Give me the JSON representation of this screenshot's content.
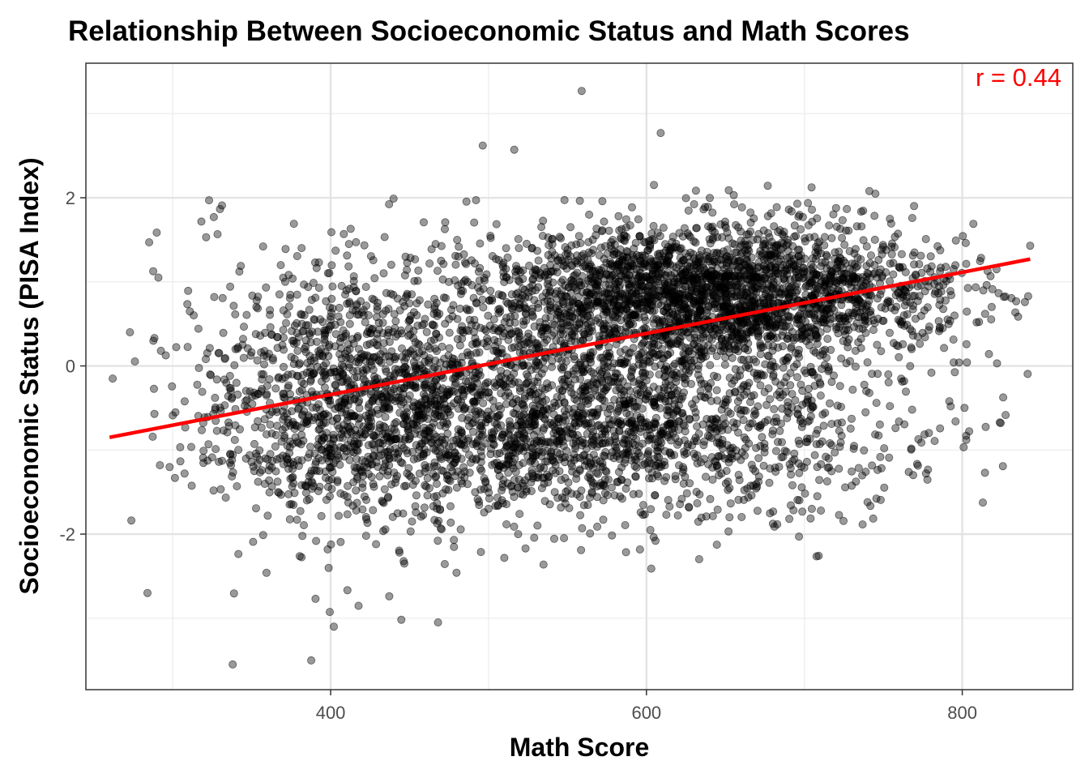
{
  "chart_data": {
    "type": "scatter",
    "title": "Relationship Between Socioeconomic Status and Math Scores",
    "xlabel": "Math Score",
    "ylabel": "Socioeconomic Status (PISA Index)",
    "xlim": [
      245,
      870
    ],
    "ylim": [
      -3.85,
      3.6
    ],
    "x_ticks": [
      400,
      600,
      800
    ],
    "x_tick_labels": [
      "400",
      "600",
      "800"
    ],
    "y_ticks": [
      -2,
      0,
      2
    ],
    "y_tick_labels": [
      "-2",
      "0",
      "2"
    ],
    "grid": true,
    "point_color": "#000000",
    "point_opacity": 0.4,
    "annotation": {
      "text": "r = 0.44",
      "color": "#ff0000"
    },
    "trend_line": {
      "color": "#ff0000",
      "x": [
        260,
        843
      ],
      "y": [
        -0.85,
        1.27
      ]
    },
    "n_points": 6000,
    "point_distribution": {
      "clusters": [
        {
          "mean_x": 640,
          "mean_y": 0.85,
          "sd_x": 75,
          "sd_y": 0.42,
          "weight": 0.45
        },
        {
          "mean_x": 560,
          "mean_y": -0.7,
          "sd_x": 95,
          "sd_y": 0.55,
          "weight": 0.35
        },
        {
          "mean_x": 420,
          "mean_y": -0.3,
          "sd_x": 55,
          "sd_y": 0.85,
          "weight": 0.2
        }
      ]
    },
    "notable_points": [
      {
        "x": 262,
        "y": -0.15
      },
      {
        "x": 284,
        "y": -2.7
      },
      {
        "x": 338,
        "y": -3.55
      },
      {
        "x": 402,
        "y": -3.1
      },
      {
        "x": 468,
        "y": -3.05
      },
      {
        "x": 559,
        "y": 3.27
      },
      {
        "x": 609,
        "y": 2.77
      },
      {
        "x": 843,
        "y": 1.43
      },
      {
        "x": 822,
        "y": 0.03
      },
      {
        "x": 326,
        "y": 1.77
      },
      {
        "x": 740,
        "y": -1.62
      },
      {
        "x": 777,
        "y": -1.28
      },
      {
        "x": 798,
        "y": 0.04
      }
    ]
  }
}
